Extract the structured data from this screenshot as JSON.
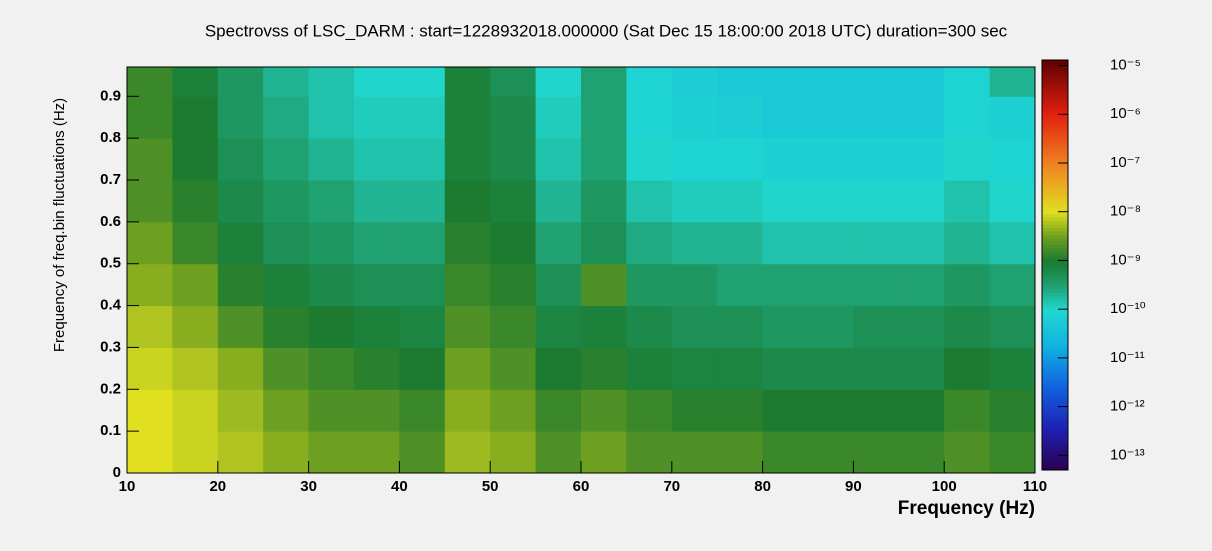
{
  "chart_data": {
    "type": "heatmap",
    "title": "Spectrovss of LSC_DARM : start=1228932018.000000 (Sat Dec 15 18:00:00 2018 UTC) duration=300 sec",
    "x_label": "Frequency (Hz)",
    "y_label": "Frequency of freq.bin fluctuations (Hz)",
    "xbins": [
      10,
      15,
      20,
      25,
      30,
      35,
      40,
      45,
      50,
      55,
      60,
      65,
      70,
      75,
      80,
      85,
      90,
      95,
      100,
      105,
      110
    ],
    "ybins": [
      0,
      0.1,
      0.2,
      0.3,
      0.4,
      0.5,
      0.6,
      0.7,
      0.8,
      0.9,
      0.97
    ],
    "values": [
      [
        1e-08,
        8e-09,
        6e-09,
        4e-09,
        3e-09,
        3e-09,
        2e-09,
        5e-09,
        4e-09,
        2e-09,
        3e-09,
        2e-09,
        2e-09,
        2e-09,
        1.5e-09,
        1.5e-09,
        1.5e-09,
        1.5e-09,
        2e-09,
        1.5e-09
      ],
      [
        1e-08,
        8e-09,
        5e-09,
        3e-09,
        2e-09,
        2e-09,
        1.5e-09,
        4e-09,
        3e-09,
        1.5e-09,
        2e-09,
        1.5e-09,
        1.2e-09,
        1.2e-09,
        1e-09,
        1e-09,
        1e-09,
        1e-09,
        1.5e-09,
        1.2e-09
      ],
      [
        8e-09,
        6e-09,
        4e-09,
        2e-09,
        1.5e-09,
        1.2e-09,
        1e-09,
        3e-09,
        2e-09,
        1e-09,
        1.2e-09,
        8e-10,
        7e-10,
        7e-10,
        6e-10,
        6e-10,
        6e-10,
        6e-10,
        1e-09,
        8e-10
      ],
      [
        6e-09,
        4e-09,
        2e-09,
        1.2e-09,
        1e-09,
        8e-10,
        7e-10,
        2e-09,
        1.5e-09,
        7e-10,
        8e-10,
        6e-10,
        5e-10,
        5e-10,
        4e-10,
        4e-10,
        5e-10,
        5e-10,
        6e-10,
        5e-10
      ],
      [
        4e-09,
        3e-09,
        1.2e-09,
        8e-10,
        6e-10,
        5e-10,
        5e-10,
        1.5e-09,
        1.2e-09,
        5e-10,
        2e-09,
        4e-10,
        4e-10,
        3e-10,
        3e-10,
        3e-10,
        3e-10,
        3e-10,
        4e-10,
        3e-10
      ],
      [
        3e-09,
        1.5e-09,
        8e-10,
        5e-10,
        4e-10,
        3e-10,
        3e-10,
        1.2e-09,
        1e-09,
        3e-10,
        5e-10,
        2.5e-10,
        2e-10,
        2e-10,
        1.5e-10,
        1.5e-10,
        1.5e-10,
        1.5e-10,
        2e-10,
        1.5e-10
      ],
      [
        2e-09,
        1.2e-09,
        6e-10,
        4e-10,
        3e-10,
        2e-10,
        2e-10,
        1e-09,
        8e-10,
        2e-10,
        4e-10,
        1.5e-10,
        1.2e-10,
        1.2e-10,
        1e-10,
        1e-10,
        1e-10,
        1e-10,
        1.5e-10,
        1e-10
      ],
      [
        2e-09,
        1e-09,
        5e-10,
        3e-10,
        2e-10,
        1.5e-10,
        1.5e-10,
        8e-10,
        6e-10,
        1.5e-10,
        3e-10,
        1e-10,
        8e-11,
        8e-11,
        7e-11,
        7e-11,
        7e-11,
        7e-11,
        1e-10,
        8e-11
      ],
      [
        1.5e-09,
        1e-09,
        4e-10,
        2.5e-10,
        1.5e-10,
        1.2e-10,
        1.2e-10,
        8e-10,
        6e-10,
        1.2e-10,
        3e-10,
        8e-11,
        7e-11,
        6e-11,
        5e-11,
        5e-11,
        5e-11,
        5e-11,
        8e-11,
        7e-11
      ],
      [
        1.5e-09,
        8e-10,
        4e-10,
        2e-10,
        1.5e-10,
        1e-10,
        1e-10,
        8e-10,
        5e-10,
        1e-10,
        3e-10,
        8e-11,
        6e-11,
        5e-11,
        5e-11,
        5e-11,
        5e-11,
        5e-11,
        8e-11,
        2e-10
      ]
    ],
    "xlim": [
      10,
      110
    ],
    "xticks": [
      10,
      20,
      30,
      40,
      50,
      60,
      70,
      80,
      90,
      100,
      110
    ],
    "ylim": [
      0,
      0.97
    ],
    "yticks": [
      0,
      0.1,
      0.2,
      0.3,
      0.4,
      0.5,
      0.6,
      0.7,
      0.8,
      0.9
    ],
    "zlim": [
      5e-14,
      1.3e-05
    ],
    "zscale": "log",
    "zticks": [
      {
        "value": 1e-05,
        "label": "10⁻⁵"
      },
      {
        "value": 1e-06,
        "label": "10⁻⁶"
      },
      {
        "value": 1e-07,
        "label": "10⁻⁷"
      },
      {
        "value": 1e-08,
        "label": "10⁻⁸"
      },
      {
        "value": 1e-09,
        "label": "10⁻⁹"
      },
      {
        "value": 1e-10,
        "label": "10⁻¹⁰"
      },
      {
        "value": 1e-11,
        "label": "10⁻¹¹"
      },
      {
        "value": 1e-12,
        "label": "10⁻¹²"
      },
      {
        "value": 1e-13,
        "label": "10⁻¹³"
      }
    ]
  }
}
